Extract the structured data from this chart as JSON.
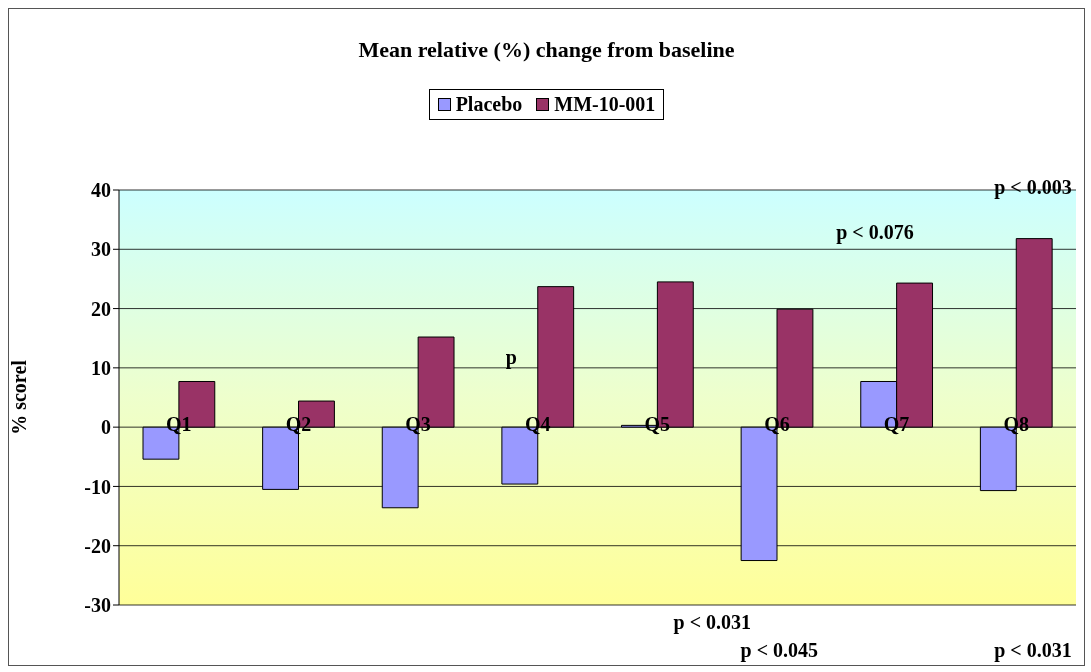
{
  "chart_data": {
    "type": "bar",
    "title": "Mean relative (%) change from baseline",
    "ylabel": "% scorel",
    "categories": [
      "Q1",
      "Q2",
      "Q3",
      "Q4",
      "Q5",
      "Q6",
      "Q7",
      "Q8"
    ],
    "series": [
      {
        "name": "Placebo",
        "color": "#9999ff",
        "values": [
          -5.4,
          -10.5,
          -13.6,
          -9.6,
          0.3,
          -22.5,
          7.7,
          -10.7
        ]
      },
      {
        "name": "MM-10-001",
        "color": "#993366",
        "values": [
          7.7,
          4.4,
          15.2,
          23.7,
          24.5,
          19.9,
          24.3,
          31.8
        ]
      }
    ],
    "ylim": [
      -30,
      40
    ],
    "yticks": [
      -30,
      -20,
      -10,
      0,
      10,
      20,
      30,
      40
    ],
    "grid": "y",
    "legend": "top",
    "annotations": [
      "p",
      "p < 0.076",
      "p < 0.003",
      "p < 0.031",
      "p < 0.045",
      "p < 0.031"
    ]
  }
}
